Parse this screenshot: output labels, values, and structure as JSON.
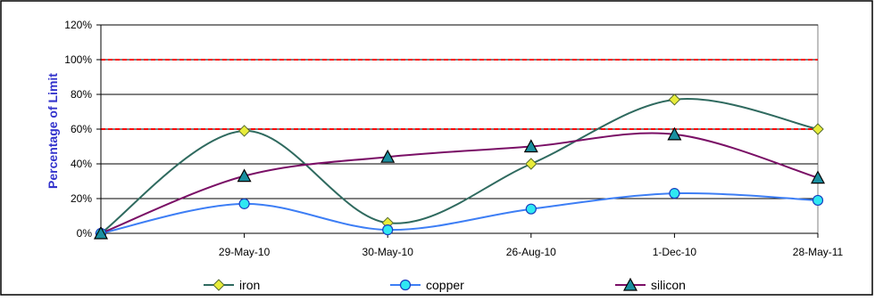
{
  "chart_data": {
    "type": "line",
    "title": "",
    "xlabel": "",
    "ylabel": "Percentage of Limit",
    "categories": [
      "",
      "29-May-10",
      "30-May-10",
      "26-Aug-10",
      "1-Dec-10",
      "28-May-11"
    ],
    "ylim": [
      0,
      120
    ],
    "yticks": [
      0,
      20,
      40,
      60,
      80,
      100,
      120
    ],
    "ytick_labels": [
      "0%",
      "20%",
      "40%",
      "60%",
      "80%",
      "100%",
      "120%"
    ],
    "grid": true,
    "reference_lines": [
      {
        "value": 60,
        "color": "#ff0000",
        "style": "dashed"
      },
      {
        "value": 100,
        "color": "#ff0000",
        "style": "dashed"
      }
    ],
    "legend_position": "bottom",
    "series": [
      {
        "name": "iron",
        "values": [
          0,
          59,
          6,
          40,
          77,
          60
        ],
        "line_color": "#2f6a5f",
        "marker": "diamond",
        "marker_fill": "#e8ec3a"
      },
      {
        "name": "copper",
        "values": [
          0,
          17,
          2,
          14,
          23,
          19
        ],
        "line_color": "#3d7ef5",
        "marker": "circle",
        "marker_fill": "#2fe8f2"
      },
      {
        "name": "silicon",
        "values": [
          0,
          33,
          44,
          50,
          57,
          32
        ],
        "line_color": "#7a0f66",
        "marker": "triangle",
        "marker_fill": "#1a8fa0"
      }
    ]
  }
}
